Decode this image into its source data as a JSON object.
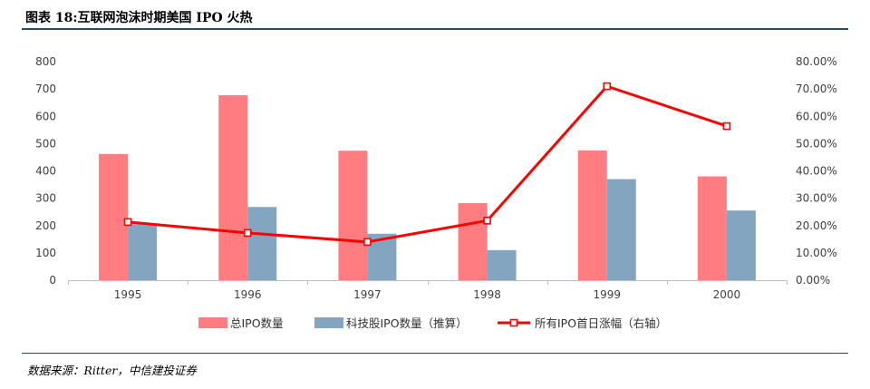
{
  "title": "图表 18:互联网泡沫时期美国 IPO 火热",
  "source": "数据来源：Ritter，中信建投证券",
  "chart_data": {
    "type": "bar+line",
    "categories": [
      "1995",
      "1996",
      "1997",
      "1998",
      "1999",
      "2000"
    ],
    "series": [
      {
        "name": "总IPO数量",
        "type": "bar",
        "axis": "left",
        "color": "#ff7c80",
        "values": [
          462,
          677,
          474,
          282,
          475,
          380
        ]
      },
      {
        "name": "科技股IPO数量（推算）",
        "type": "bar",
        "axis": "left",
        "color": "#84a5bf",
        "values": [
          205,
          268,
          170,
          110,
          370,
          255
        ]
      },
      {
        "name": "所有IPO首日涨幅（右轴）",
        "type": "line",
        "axis": "right",
        "color": "#ff0000",
        "values": [
          21.3,
          17.3,
          14.0,
          21.8,
          71.0,
          56.4
        ]
      }
    ],
    "y_left": {
      "min": 0,
      "max": 800,
      "step": 100,
      "ticks": [
        "0",
        "100",
        "200",
        "300",
        "400",
        "500",
        "600",
        "700",
        "800"
      ]
    },
    "y_right": {
      "min": 0,
      "max": 80,
      "step": 10,
      "ticks": [
        "0.00%",
        "10.00%",
        "20.00%",
        "30.00%",
        "40.00%",
        "50.00%",
        "60.00%",
        "70.00%",
        "80.00%"
      ]
    },
    "grid": false,
    "legend": "bottom"
  }
}
